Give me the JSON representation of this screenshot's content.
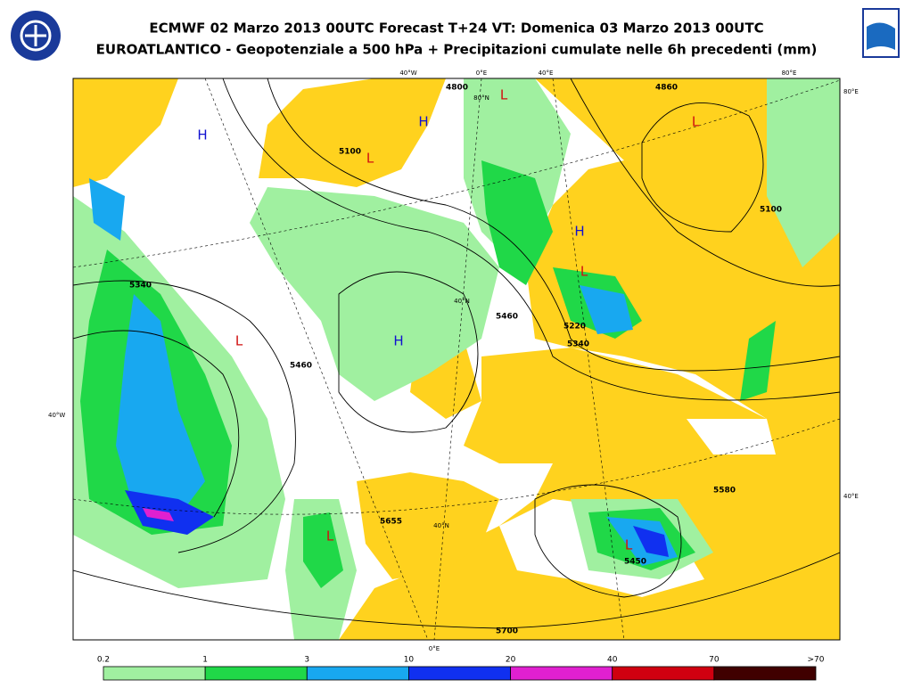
{
  "header": {
    "title": "ECMWF 02 Marzo 2013 00UTC Forecast T+24 VT: Domenica 03 Marzo 2013 00UTC",
    "subtitle": "EUROATLANTICO - Geopotenziale a 500 hPa + Precipitazioni cumulate nelle 6h precedenti (mm)"
  },
  "map": {
    "graticule_labels": [
      "40°W",
      "0°E",
      "40°E",
      "80°E",
      "80°E",
      "40°E",
      "40°W",
      "80°N",
      "40°N",
      "40°N",
      "0°E"
    ],
    "contour_labels": [
      "5100",
      "5100",
      "5340",
      "5460",
      "5220",
      "5340",
      "5460",
      "5580",
      "5450",
      "5700",
      "5655",
      "4800",
      "4860"
    ],
    "highs": [
      "H",
      "H",
      "H",
      "H"
    ],
    "lows": [
      "L",
      "L",
      "L",
      "L",
      "L",
      "L",
      "L"
    ]
  },
  "legend": {
    "labels": [
      "0.2",
      "1",
      "3",
      "10",
      "20",
      "40",
      "70",
      ">70"
    ],
    "colors": [
      "#a0f0a0",
      "#20d848",
      "#18a8f0",
      "#1030f0",
      "#e020d0",
      "#d00010",
      "#400000"
    ]
  }
}
